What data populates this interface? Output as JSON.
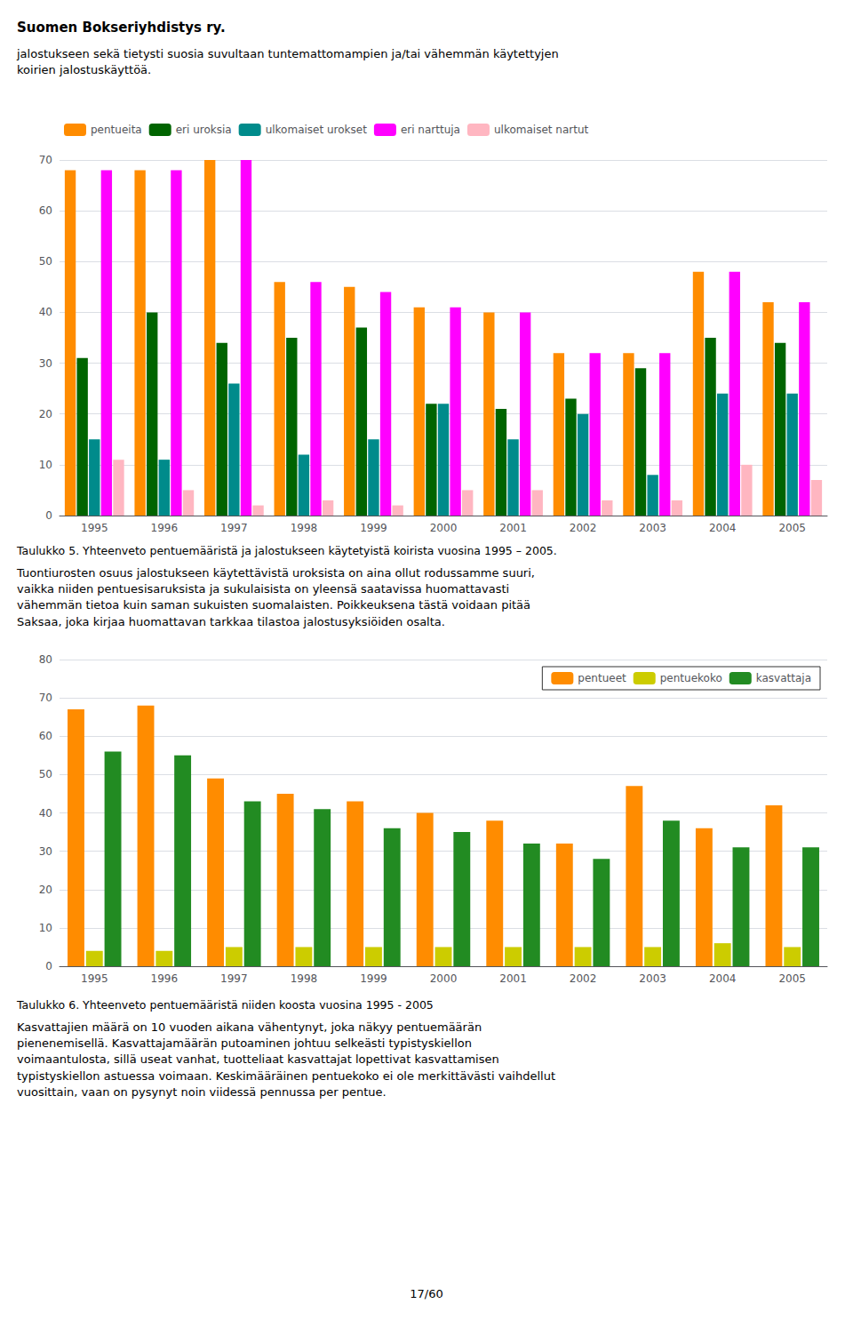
{
  "page_title": "Suomen Bokseriyhdistys ry.",
  "intro_text": "jalostukseen sekä tietysti suosia suvultaan tuntemattomampien ja/tai vähemmän käytettyjen\nkoirien jalostuskäyttöä.",
  "body_text": "Tuontiurosten osuus jalostukseen käytettävistä uroksista on aina ollut rodussamme suuri,\nvaikka niiden pentuesisaruksista ja sukulaisista on yleensä saatavissa huomattavasti\nvähemmän tietoa kuin saman sukuisten suomalaisten. Poikkeuksena tästä voidaan pitää\nSaksaa, joka kirjaa huomattavan tarkkaa tilastoa jalostusyksiöiden osalta.",
  "footer_text": "Kasvattajien määrä on 10 vuoden aikana vähentynyt, joka näkyy pentuemäärän\npienenemisellä. Kasvattajamäärän putoaminen johtuu selkeästi typistyskiellon\nvoimaantulosta, sillä useat vanhat, tuotteliaat kasvattajat lopettivat kasvattamisen\ntypistyskiellon astuessa voimaan. Keskimääräinen pentuekoko ei ole merkittävästi vaihdellut\nvuosittain, vaan on pysynyt noin viidessä pennussa per pentue.",
  "page_number": "17/60",
  "chart_data": [
    {
      "type": "bar",
      "title": "Taulukko 5. Yhteenveto pentuemääristä ja jalostukseen käytetyistä koirista vuosina 1995 – 2005.",
      "categories": [
        "1995",
        "1996",
        "1997",
        "1998",
        "1999",
        "2000",
        "2001",
        "2002",
        "2003",
        "2004",
        "2005"
      ],
      "series": [
        {
          "name": "pentueita",
          "color": "#FF8C00",
          "values": [
            68,
            68,
            70,
            46,
            45,
            41,
            40,
            32,
            32,
            48,
            42
          ]
        },
        {
          "name": "eri uroksia",
          "color": "#006400",
          "values": [
            31,
            40,
            34,
            35,
            37,
            22,
            21,
            23,
            29,
            35,
            34
          ]
        },
        {
          "name": "ulkomaiset urokset",
          "color": "#008B8B",
          "values": [
            15,
            11,
            26,
            12,
            15,
            22,
            15,
            20,
            8,
            24,
            24
          ]
        },
        {
          "name": "eri narttuja",
          "color": "#FF00FF",
          "values": [
            68,
            68,
            70,
            46,
            44,
            41,
            40,
            32,
            32,
            48,
            42
          ]
        },
        {
          "name": "ulkomaiset nartut",
          "color": "#FFB6C1",
          "values": [
            11,
            5,
            2,
            3,
            2,
            5,
            5,
            3,
            3,
            10,
            7
          ]
        }
      ],
      "ylim": [
        0,
        70
      ],
      "yticks": [
        0,
        10,
        20,
        30,
        40,
        50,
        60,
        70
      ],
      "grid": true,
      "legend": "top"
    },
    {
      "type": "bar",
      "title": "Taulukko 6. Yhteenveto pentuemääristä niiden koosta vuosina 1995 - 2005",
      "categories": [
        "1995",
        "1996",
        "1997",
        "1998",
        "1999",
        "2000",
        "2001",
        "2002",
        "2003",
        "2004",
        "2005"
      ],
      "series": [
        {
          "name": "pentueet",
          "color": "#FF8C00",
          "values": [
            67,
            68,
            49,
            45,
            43,
            40,
            38,
            32,
            47,
            36,
            42
          ]
        },
        {
          "name": "pentuekoko",
          "color": "#CCCC00",
          "values": [
            4,
            4,
            5,
            5,
            5,
            5,
            5,
            5,
            5,
            6,
            5
          ]
        },
        {
          "name": "kasvattaja",
          "color": "#228B22",
          "values": [
            56,
            55,
            43,
            41,
            36,
            35,
            32,
            28,
            38,
            31,
            31
          ]
        }
      ],
      "ylim": [
        0,
        80
      ],
      "yticks": [
        0,
        10,
        20,
        30,
        40,
        50,
        60,
        70,
        80
      ],
      "grid": true,
      "legend": "upper right"
    }
  ]
}
